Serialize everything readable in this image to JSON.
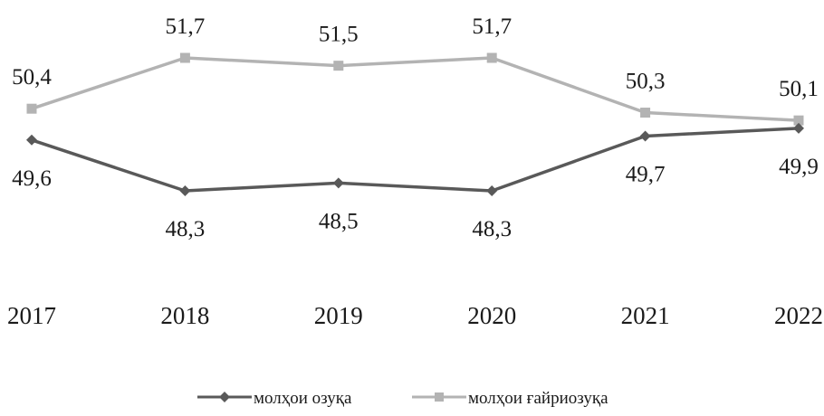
{
  "chart_data": {
    "type": "line",
    "categories": [
      "2017",
      "2018",
      "2019",
      "2020",
      "2021",
      "2022"
    ],
    "series": [
      {
        "name": "молҳои озуқа",
        "values": [
          49.6,
          48.3,
          48.5,
          48.3,
          49.7,
          49.9
        ],
        "labels": [
          "49,6",
          "48,3",
          "48,5",
          "48,3",
          "49,7",
          "49,9"
        ],
        "color": "#595959",
        "marker": "diamond"
      },
      {
        "name": "молҳои ғайриозуқа",
        "values": [
          50.4,
          51.7,
          51.5,
          51.7,
          50.3,
          50.1
        ],
        "labels": [
          "50,4",
          "51,7",
          "51,5",
          "51,7",
          "50,3",
          "50,1"
        ],
        "color": "#b3b3b3",
        "marker": "square"
      }
    ],
    "grid": false,
    "legend_position": "bottom"
  }
}
